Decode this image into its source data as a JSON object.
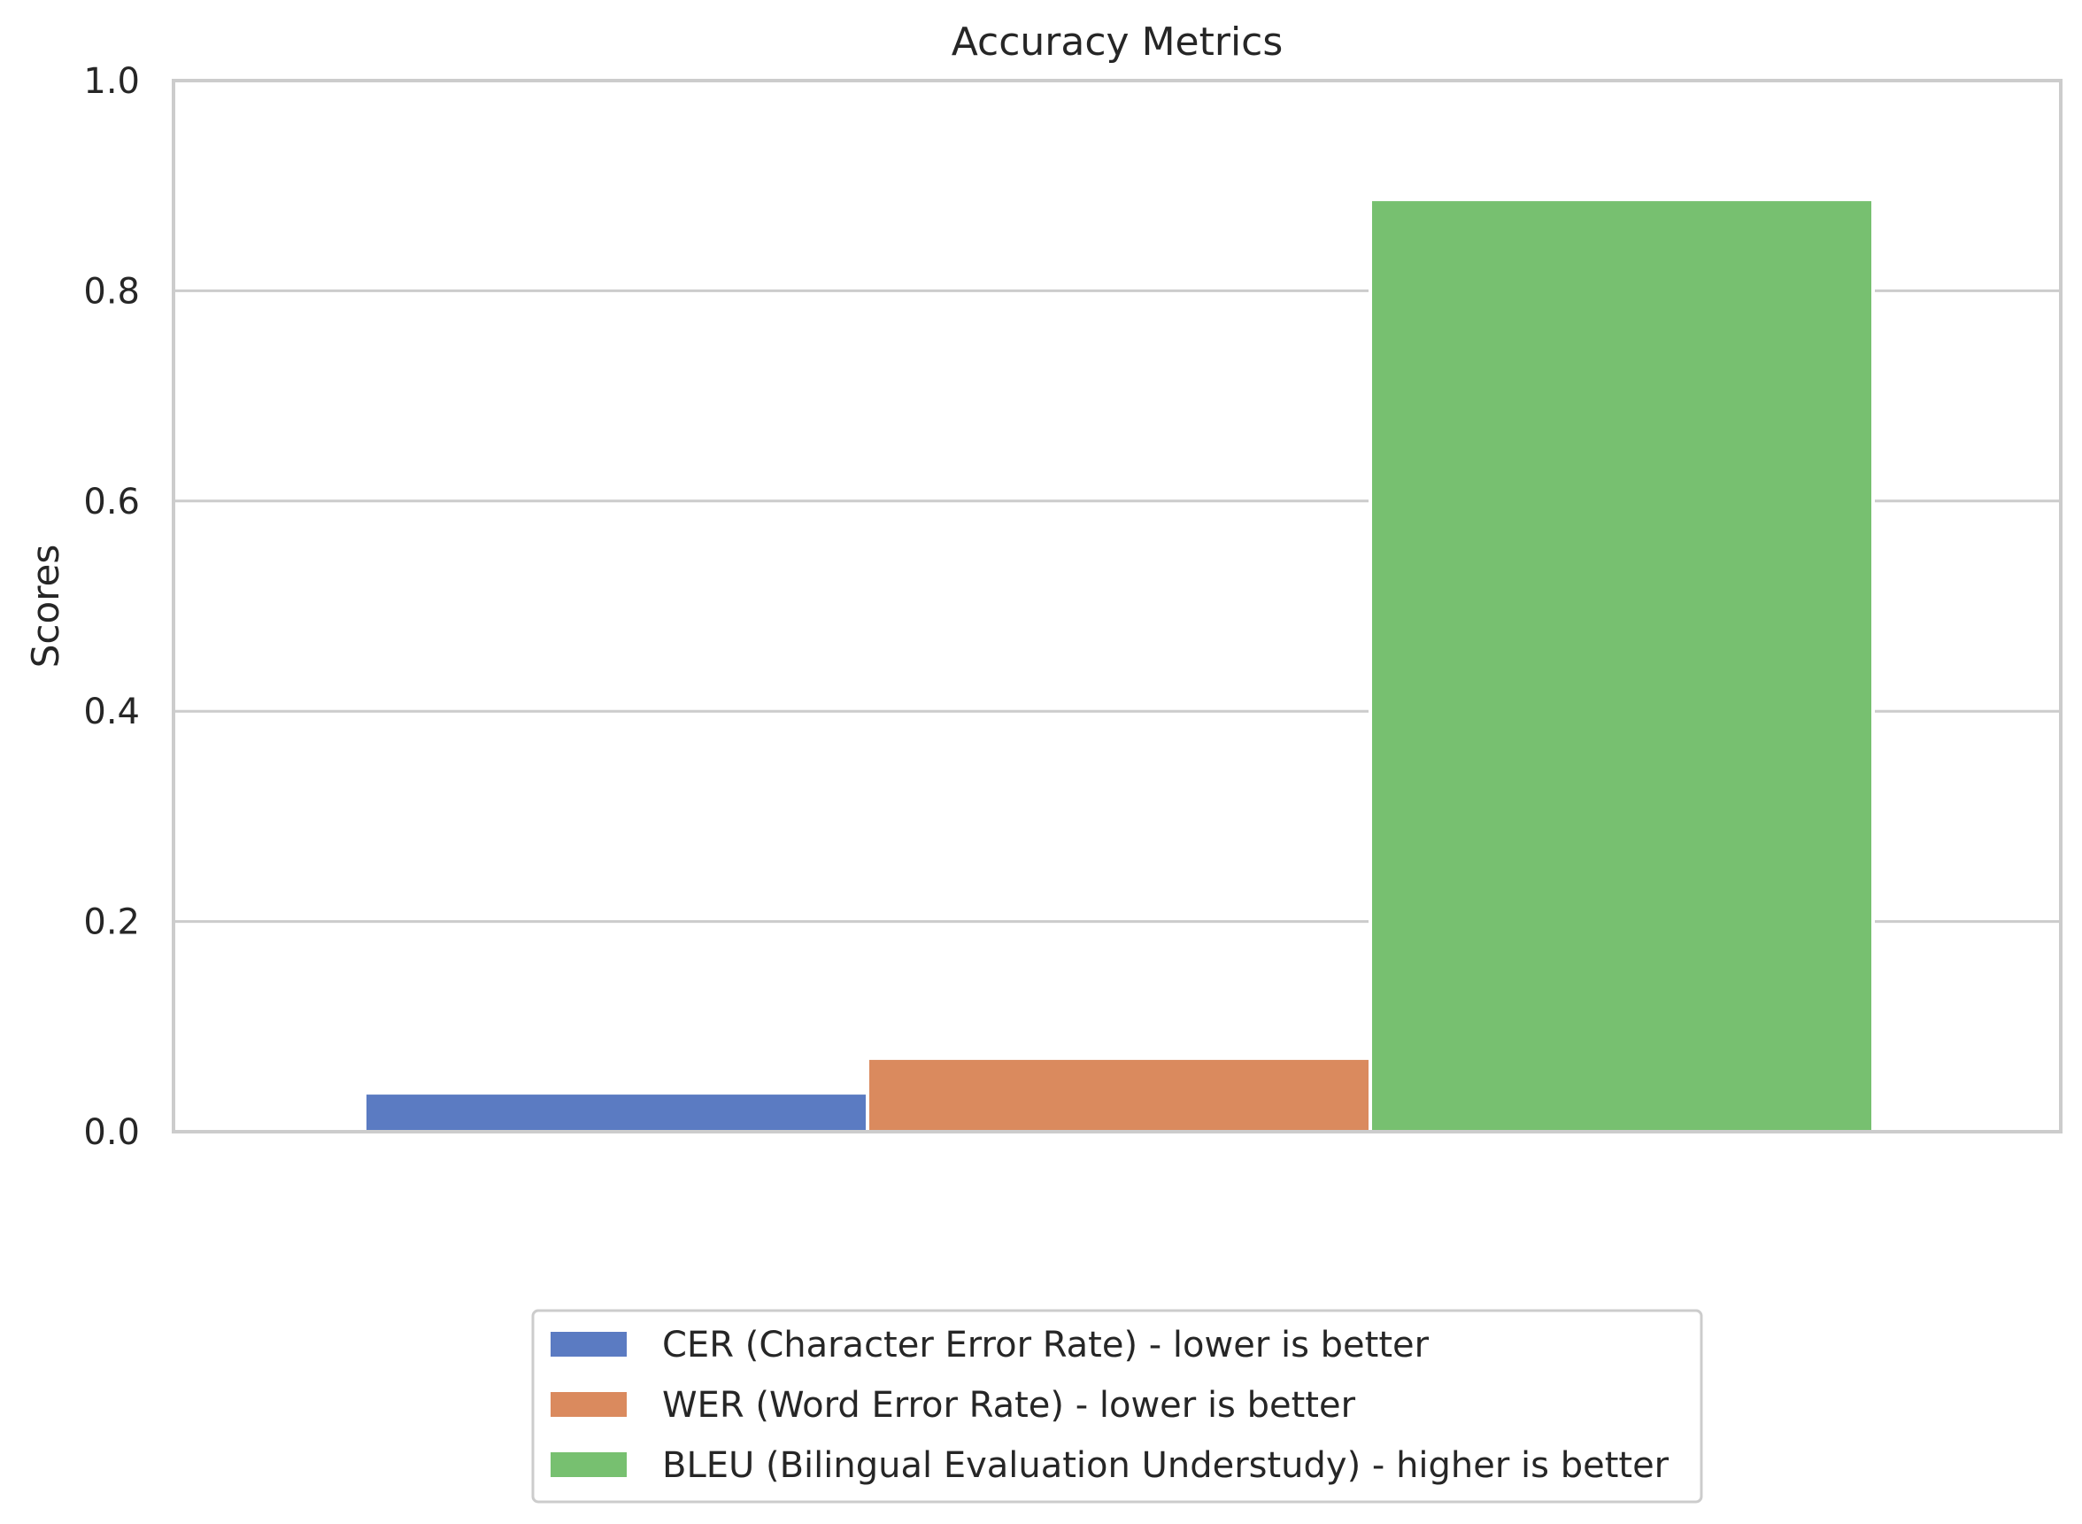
{
  "chart_data": {
    "type": "bar",
    "title": "Accuracy Metrics",
    "xlabel": "",
    "ylabel": "Scores",
    "ylim": [
      0,
      1.0
    ],
    "yticks": [
      "0.0",
      "0.2",
      "0.4",
      "0.6",
      "0.8",
      "1.0"
    ],
    "grid": true,
    "legend_position": "bottom-center",
    "series": [
      {
        "name": "CER (Character Error Rate) - lower is better",
        "value": 0.037,
        "color": "#5b7bc2"
      },
      {
        "name": "WER (Word Error Rate) - lower is better",
        "value": 0.07,
        "color": "#da8a5e"
      },
      {
        "name": "BLEU (Bilingual Evaluation Understudy) - higher is better",
        "value": 0.887,
        "color": "#77c070"
      }
    ]
  }
}
